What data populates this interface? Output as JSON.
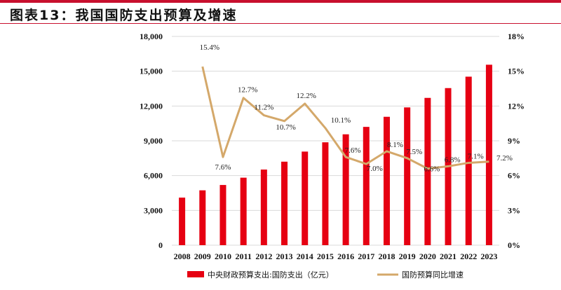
{
  "title": "图表13：我国国防支出预算及增速",
  "colors": {
    "bar": "#e60012",
    "line": "#d4a86a",
    "accent": "#c8102e"
  },
  "chart_data": {
    "type": "bar+line",
    "categories": [
      "2008",
      "2009",
      "2010",
      "2011",
      "2012",
      "2013",
      "2014",
      "2015",
      "2016",
      "2017",
      "2018",
      "2019",
      "2020",
      "2021",
      "2022",
      "2023"
    ],
    "series": [
      {
        "name": "中央财政预算支出:国防支出（亿元）",
        "type": "bar",
        "axis": "left",
        "values": [
          4100,
          4730,
          5190,
          5820,
          6520,
          7200,
          8070,
          8870,
          9560,
          10200,
          11070,
          11880,
          12700,
          13545,
          14530,
          15560
        ]
      },
      {
        "name": "国防预算同比增速",
        "type": "line",
        "axis": "right",
        "values": [
          null,
          15.4,
          7.6,
          12.7,
          11.2,
          10.7,
          12.2,
          10.1,
          7.6,
          7.0,
          8.1,
          7.5,
          6.6,
          6.8,
          7.1,
          7.2
        ],
        "labels": [
          "",
          "15.4%",
          "7.6%",
          "12.7%",
          "11.2%",
          "10.7%",
          "12.2%",
          "10.1%",
          "7.6%",
          "7.0%",
          "8.1%",
          "7.5%",
          "6.6%",
          "6.8%",
          "7.1%",
          "7.2%"
        ]
      }
    ],
    "left_axis": {
      "ylim": [
        0,
        18000
      ],
      "ticks": [
        "0",
        "3,000",
        "6,000",
        "9,000",
        "12,000",
        "15,000",
        "18,000"
      ]
    },
    "right_axis": {
      "ylim": [
        0,
        18
      ],
      "ticks": [
        "0%",
        "3%",
        "6%",
        "9%",
        "12%",
        "15%",
        "18%"
      ]
    },
    "grid": true,
    "legend": "bottom"
  }
}
